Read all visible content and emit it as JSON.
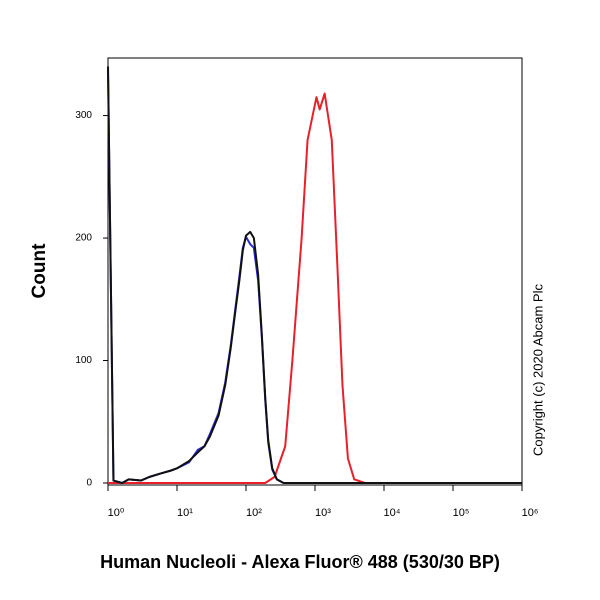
{
  "chart_data": {
    "type": "line",
    "x_label": "Human Nucleoli -  Alexa Fluor® 488 (530/30 BP)",
    "y_label": "Count",
    "annotation": "Copyright (c) 2020 Abcam Plc",
    "x_scale": "log",
    "xlim": [
      1,
      1000000
    ],
    "xticks": [
      {
        "value": 1,
        "label": "10⁰"
      },
      {
        "value": 10,
        "label": "10¹"
      },
      {
        "value": 100,
        "label": "10²"
      },
      {
        "value": 1000,
        "label": "10³"
      },
      {
        "value": 10000,
        "label": "10⁴"
      },
      {
        "value": 100000,
        "label": "10⁵"
      },
      {
        "value": 1000000,
        "label": "10⁶"
      }
    ],
    "ylim": [
      0,
      347
    ],
    "yticks": [
      0,
      100,
      200,
      300
    ],
    "series": [
      {
        "color": "#e8202a",
        "x": [
          1,
          190,
          260,
          370,
          470,
          640,
          780,
          1050,
          1170,
          1380,
          1750,
          2100,
          2500,
          3000,
          3700,
          5300,
          1000000
        ],
        "values": [
          0,
          0,
          5,
          30,
          100,
          200,
          280,
          315,
          305,
          318,
          280,
          180,
          80,
          20,
          3,
          0,
          0
        ]
      },
      {
        "color": "#2a2ad8",
        "x": [
          1,
          1.2,
          1.6,
          2,
          3,
          4,
          6,
          8,
          10,
          15,
          20,
          25,
          30,
          40,
          50,
          60,
          70,
          80,
          90,
          100,
          115,
          130,
          150,
          170,
          190,
          210,
          240,
          280,
          350,
          1000000
        ],
        "values": [
          338,
          2,
          0,
          3,
          2,
          5,
          8,
          10,
          12,
          17,
          27,
          30,
          40,
          57,
          82,
          112,
          142,
          168,
          192,
          201,
          195,
          192,
          165,
          118,
          68,
          33,
          11,
          3,
          0,
          0
        ]
      },
      {
        "color": "#111111",
        "x": [
          1,
          1.2,
          1.6,
          2,
          3,
          4,
          6,
          8,
          10,
          15,
          20,
          25,
          30,
          40,
          50,
          60,
          70,
          80,
          90,
          100,
          115,
          130,
          150,
          170,
          190,
          210,
          240,
          280,
          350,
          1000000
        ],
        "values": [
          340,
          2,
          0,
          3,
          2,
          5,
          8,
          10,
          12,
          18,
          25,
          30,
          38,
          55,
          80,
          110,
          140,
          165,
          190,
          202,
          205,
          200,
          170,
          120,
          70,
          35,
          12,
          3,
          0,
          0
        ]
      }
    ]
  }
}
